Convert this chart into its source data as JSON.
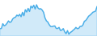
{
  "line_color": "#4aaee8",
  "fill_color": "#4aaee8",
  "fill_alpha": 0.25,
  "background_color": "#ffffff",
  "linewidth": 1.0,
  "values": [
    88,
    89,
    91,
    90,
    92,
    91,
    93,
    92,
    94,
    95,
    96,
    95,
    97,
    96,
    98,
    97,
    99,
    98,
    100,
    99,
    101,
    100,
    102,
    101,
    103,
    102,
    104,
    103,
    102,
    101,
    100,
    98,
    96,
    94,
    93,
    92,
    91,
    90,
    91,
    90,
    89,
    88,
    89,
    88,
    87,
    88,
    87,
    86,
    87,
    86,
    87,
    88,
    87,
    88,
    89,
    88,
    89,
    90,
    91,
    92,
    93,
    94,
    95,
    96,
    97,
    98,
    99,
    100,
    101,
    103
  ],
  "ylim": [
    84,
    107
  ]
}
